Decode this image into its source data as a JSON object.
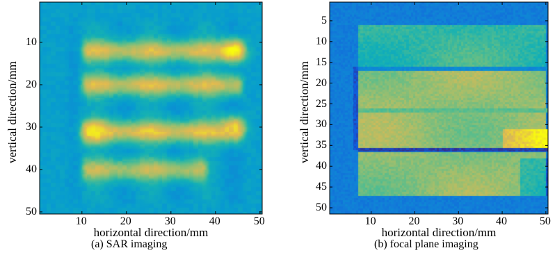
{
  "figure": {
    "panels": [
      {
        "id": "a",
        "caption": "(a) SAR imaging",
        "chart_data": {
          "type": "heatmap",
          "title": "",
          "xlabel": "horizontal direction/mm",
          "ylabel": "vertical direction/mm",
          "xlim": [
            1,
            50
          ],
          "ylim": [
            1,
            50
          ],
          "y_reversed": true,
          "xticks": [
            10,
            20,
            30,
            40,
            50
          ],
          "yticks": [
            10,
            20,
            30,
            40,
            50
          ],
          "colormap": "parula",
          "background_level": 0.12,
          "plate_x": [
            7,
            47
          ],
          "plate_y": [
            5,
            48
          ],
          "plate_level": 0.4,
          "bright_rows": [
            {
              "y": 12,
              "x0": 10,
              "x1": 46,
              "level": 0.83
            },
            {
              "y": 20,
              "x0": 10,
              "x1": 46,
              "level": 0.83
            },
            {
              "y": 31,
              "x0": 10,
              "x1": 46,
              "level": 0.87
            },
            {
              "y": 40,
              "x0": 10,
              "x1": 38,
              "level": 0.78
            }
          ],
          "bright_spots": [
            {
              "x": 44,
              "y": 12,
              "level": 1.0
            },
            {
              "x": 13,
              "y": 31,
              "level": 0.95
            },
            {
              "x": 44,
              "y": 30,
              "level": 0.92
            }
          ]
        }
      },
      {
        "id": "b",
        "caption": "(b) focal plane imaging",
        "chart_data": {
          "type": "heatmap",
          "title": "",
          "xlabel": "horizontal direction/mm",
          "ylabel": "vertical direction/mm",
          "xlim": [
            1,
            50
          ],
          "ylim": [
            1,
            51
          ],
          "y_reversed": true,
          "xticks": [
            10,
            20,
            30,
            40,
            50
          ],
          "yticks": [
            5,
            10,
            15,
            20,
            25,
            30,
            35,
            40,
            45,
            50
          ],
          "colormap": "parula",
          "background_level": 0.25,
          "regions": [
            {
              "x0": 7,
              "x1": 50,
              "y0": 6,
              "y1": 16,
              "level": 0.55
            },
            {
              "x0": 7,
              "x1": 50,
              "y0": 17,
              "y1": 35.5,
              "level": 0.72
            },
            {
              "x0": 7,
              "x1": 50,
              "y0": 36.5,
              "y1": 47,
              "level": 0.7
            }
          ],
          "dark_lines": [
            {
              "y": 16.5,
              "level": 0.3
            },
            {
              "y": 26.5,
              "level": 0.62
            },
            {
              "y": 36,
              "level": 0.05
            }
          ]
        }
      }
    ]
  }
}
